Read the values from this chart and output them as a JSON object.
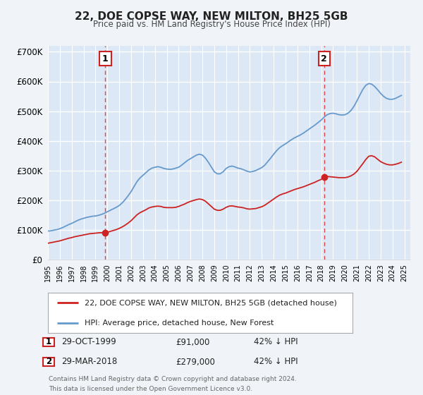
{
  "title": "22, DOE COPSE WAY, NEW MILTON, BH25 5GB",
  "subtitle": "Price paid vs. HM Land Registry's House Price Index (HPI)",
  "bg_color": "#f0f4f8",
  "plot_bg_color": "#dce8f5",
  "grid_color": "#ffffff",
  "ylim": [
    0,
    720000
  ],
  "yticks": [
    0,
    100000,
    200000,
    300000,
    400000,
    500000,
    600000,
    700000
  ],
  "ytick_labels": [
    "£0",
    "£100K",
    "£200K",
    "£300K",
    "£400K",
    "£500K",
    "£600K",
    "£700K"
  ],
  "xmin": 1995.0,
  "xmax": 2025.5,
  "sale1_x": 1999.83,
  "sale1_y": 91000,
  "sale1_label": "1",
  "sale1_date": "29-OCT-1999",
  "sale1_price": "£91,000",
  "sale1_hpi": "42% ↓ HPI",
  "sale2_x": 2018.25,
  "sale2_y": 279000,
  "sale2_label": "2",
  "sale2_date": "29-MAR-2018",
  "sale2_price": "£279,000",
  "sale2_hpi": "42% ↓ HPI",
  "red_line_color": "#cc2222",
  "blue_line_color": "#6699cc",
  "vline_color": "#dd4444",
  "marker_color": "#cc2222",
  "legend_label_red": "22, DOE COPSE WAY, NEW MILTON, BH25 5GB (detached house)",
  "legend_label_blue": "HPI: Average price, detached house, New Forest",
  "footer1": "Contains HM Land Registry data © Crown copyright and database right 2024.",
  "footer2": "This data is licensed under the Open Government Licence v3.0.",
  "hpi_years": [
    1995.0,
    1995.25,
    1995.5,
    1995.75,
    1996.0,
    1996.25,
    1996.5,
    1996.75,
    1997.0,
    1997.25,
    1997.5,
    1997.75,
    1998.0,
    1998.25,
    1998.5,
    1998.75,
    1999.0,
    1999.25,
    1999.5,
    1999.75,
    2000.0,
    2000.25,
    2000.5,
    2000.75,
    2001.0,
    2001.25,
    2001.5,
    2001.75,
    2002.0,
    2002.25,
    2002.5,
    2002.75,
    2003.0,
    2003.25,
    2003.5,
    2003.75,
    2004.0,
    2004.25,
    2004.5,
    2004.75,
    2005.0,
    2005.25,
    2005.5,
    2005.75,
    2006.0,
    2006.25,
    2006.5,
    2006.75,
    2007.0,
    2007.25,
    2007.5,
    2007.75,
    2008.0,
    2008.25,
    2008.5,
    2008.75,
    2009.0,
    2009.25,
    2009.5,
    2009.75,
    2010.0,
    2010.25,
    2010.5,
    2010.75,
    2011.0,
    2011.25,
    2011.5,
    2011.75,
    2012.0,
    2012.25,
    2012.5,
    2012.75,
    2013.0,
    2013.25,
    2013.5,
    2013.75,
    2014.0,
    2014.25,
    2014.5,
    2014.75,
    2015.0,
    2015.25,
    2015.5,
    2015.75,
    2016.0,
    2016.25,
    2016.5,
    2016.75,
    2017.0,
    2017.25,
    2017.5,
    2017.75,
    2018.0,
    2018.25,
    2018.5,
    2018.75,
    2019.0,
    2019.25,
    2019.5,
    2019.75,
    2020.0,
    2020.25,
    2020.5,
    2020.75,
    2021.0,
    2021.25,
    2021.5,
    2021.75,
    2022.0,
    2022.25,
    2022.5,
    2022.75,
    2023.0,
    2023.25,
    2023.5,
    2023.75,
    2024.0,
    2024.25,
    2024.5,
    2024.75
  ],
  "hpi_values": [
    96000,
    97000,
    99000,
    101000,
    104000,
    108000,
    113000,
    118000,
    122000,
    127000,
    132000,
    136000,
    139000,
    142000,
    144000,
    146000,
    147000,
    149000,
    152000,
    156000,
    161000,
    166000,
    171000,
    176000,
    182000,
    191000,
    202000,
    215000,
    229000,
    246000,
    263000,
    275000,
    284000,
    293000,
    302000,
    308000,
    311000,
    313000,
    311000,
    307000,
    305000,
    304000,
    305000,
    308000,
    311000,
    318000,
    326000,
    334000,
    340000,
    346000,
    352000,
    355000,
    352000,
    342000,
    328000,
    312000,
    296000,
    289000,
    289000,
    296000,
    307000,
    313000,
    315000,
    312000,
    308000,
    306000,
    302000,
    298000,
    295000,
    297000,
    300000,
    305000,
    310000,
    318000,
    330000,
    342000,
    355000,
    367000,
    377000,
    384000,
    390000,
    397000,
    404000,
    410000,
    415000,
    420000,
    426000,
    433000,
    440000,
    447000,
    454000,
    462000,
    470000,
    480000,
    488000,
    492000,
    493000,
    491000,
    488000,
    487000,
    488000,
    493000,
    502000,
    516000,
    534000,
    554000,
    573000,
    587000,
    593000,
    591000,
    583000,
    572000,
    560000,
    550000,
    543000,
    540000,
    540000,
    543000,
    548000,
    553000
  ],
  "red_years": [
    1995.0,
    1995.25,
    1995.5,
    1995.75,
    1996.0,
    1996.25,
    1996.5,
    1996.75,
    1997.0,
    1997.25,
    1997.5,
    1997.75,
    1998.0,
    1998.25,
    1998.5,
    1998.75,
    1999.0,
    1999.25,
    1999.5,
    1999.75,
    1999.83,
    2000.0,
    2000.25,
    2000.5,
    2000.75,
    2001.0,
    2001.25,
    2001.5,
    2001.75,
    2002.0,
    2002.25,
    2002.5,
    2002.75,
    2003.0,
    2003.25,
    2003.5,
    2003.75,
    2004.0,
    2004.25,
    2004.5,
    2004.75,
    2005.0,
    2005.25,
    2005.5,
    2005.75,
    2006.0,
    2006.25,
    2006.5,
    2006.75,
    2007.0,
    2007.25,
    2007.5,
    2007.75,
    2008.0,
    2008.25,
    2008.5,
    2008.75,
    2009.0,
    2009.25,
    2009.5,
    2009.75,
    2010.0,
    2010.25,
    2010.5,
    2010.75,
    2011.0,
    2011.25,
    2011.5,
    2011.75,
    2012.0,
    2012.25,
    2012.5,
    2012.75,
    2013.0,
    2013.25,
    2013.5,
    2013.75,
    2014.0,
    2014.25,
    2014.5,
    2014.75,
    2015.0,
    2015.25,
    2015.5,
    2015.75,
    2016.0,
    2016.25,
    2016.5,
    2016.75,
    2017.0,
    2017.25,
    2017.5,
    2017.75,
    2018.0,
    2018.25,
    2018.5,
    2018.75,
    2019.0,
    2019.25,
    2019.5,
    2019.75,
    2020.0,
    2020.25,
    2020.5,
    2020.75,
    2021.0,
    2021.25,
    2021.5,
    2021.75,
    2022.0,
    2022.25,
    2022.5,
    2022.75,
    2023.0,
    2023.25,
    2023.5,
    2023.75,
    2024.0,
    2024.25,
    2024.5,
    2024.75
  ],
  "red_values": [
    55000,
    57000,
    59000,
    61000,
    63000,
    66000,
    69000,
    72000,
    74000,
    77000,
    79000,
    81000,
    83000,
    85000,
    87000,
    88000,
    89000,
    90000,
    90500,
    91000,
    91000,
    92000,
    95000,
    98000,
    101000,
    105000,
    110000,
    116000,
    123000,
    131000,
    141000,
    151000,
    158000,
    163000,
    168000,
    174000,
    177000,
    179000,
    180000,
    179000,
    176000,
    175000,
    175000,
    175000,
    176000,
    179000,
    183000,
    187000,
    192000,
    196000,
    199000,
    202000,
    204000,
    202000,
    197000,
    188000,
    179000,
    170000,
    166000,
    166000,
    170000,
    176000,
    180000,
    181000,
    179000,
    177000,
    176000,
    174000,
    171000,
    170000,
    171000,
    172000,
    175000,
    178000,
    183000,
    190000,
    197000,
    204000,
    211000,
    217000,
    221000,
    224000,
    228000,
    232000,
    236000,
    239000,
    242000,
    245000,
    249000,
    253000,
    257000,
    261000,
    266000,
    270000,
    279000,
    280000,
    279000,
    278000,
    277000,
    276000,
    276000,
    276000,
    278000,
    282000,
    288000,
    297000,
    310000,
    323000,
    337000,
    348000,
    350000,
    346000,
    338000,
    330000,
    325000,
    321000,
    319000,
    319000,
    321000,
    324000,
    328000
  ]
}
